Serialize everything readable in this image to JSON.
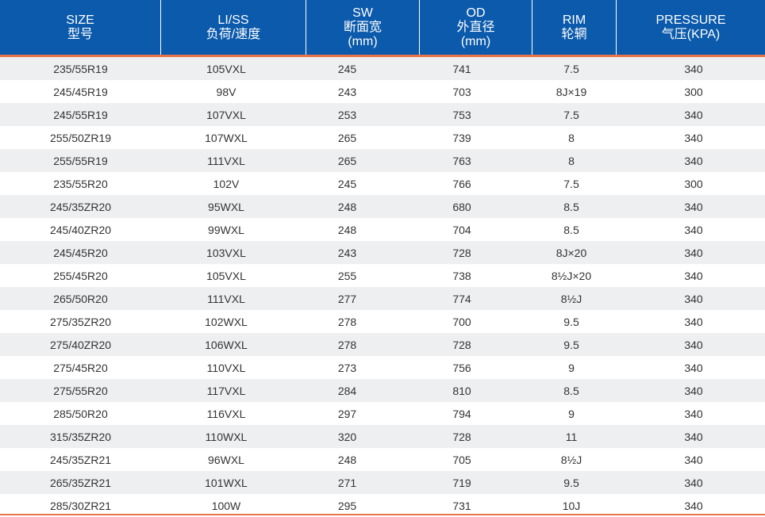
{
  "headers": [
    {
      "en": "SIZE",
      "zh": "型号"
    },
    {
      "en": "LI/SS",
      "zh": "负荷/速度"
    },
    {
      "en": "SW",
      "zh": "断面宽",
      "unit": "(mm)"
    },
    {
      "en": "OD",
      "zh": "外直径",
      "unit": "(mm)"
    },
    {
      "en": "RIM",
      "zh": "轮辋"
    },
    {
      "en": "PRESSURE",
      "zh": "气压(KPA)"
    }
  ],
  "rows": [
    [
      "235/55R19",
      "105VXL",
      "245",
      "741",
      "7.5",
      "340"
    ],
    [
      "245/45R19",
      "98V",
      "243",
      "703",
      "8J×19",
      "300"
    ],
    [
      "245/55R19",
      "107VXL",
      "253",
      "753",
      "7.5",
      "340"
    ],
    [
      "255/50ZR19",
      "107WXL",
      "265",
      "739",
      "8",
      "340"
    ],
    [
      "255/55R19",
      "111VXL",
      "265",
      "763",
      "8",
      "340"
    ],
    [
      "235/55R20",
      "102V",
      "245",
      "766",
      "7.5",
      "300"
    ],
    [
      "245/35ZR20",
      "95WXL",
      "248",
      "680",
      "8.5",
      "340"
    ],
    [
      "245/40ZR20",
      "99WXL",
      "248",
      "704",
      "8.5",
      "340"
    ],
    [
      "245/45R20",
      "103VXL",
      "243",
      "728",
      "8J×20",
      "340"
    ],
    [
      "255/45R20",
      "105VXL",
      "255",
      "738",
      "8½J×20",
      "340"
    ],
    [
      "265/50R20",
      "111VXL",
      "277",
      "774",
      "8½J",
      "340"
    ],
    [
      "275/35ZR20",
      "102WXL",
      "278",
      "700",
      "9.5",
      "340"
    ],
    [
      "275/40ZR20",
      "106WXL",
      "278",
      "728",
      "9.5",
      "340"
    ],
    [
      "275/45R20",
      "110VXL",
      "273",
      "756",
      "9",
      "340"
    ],
    [
      "275/55R20",
      "117VXL",
      "284",
      "810",
      "8.5",
      "340"
    ],
    [
      "285/50R20",
      "116VXL",
      "297",
      "794",
      "9",
      "340"
    ],
    [
      "315/35ZR20",
      "110WXL",
      "320",
      "728",
      "11",
      "340"
    ],
    [
      "245/35ZR21",
      "96WXL",
      "248",
      "705",
      "8½J",
      "340"
    ],
    [
      "265/35ZR21",
      "101WXL",
      "271",
      "719",
      "9.5",
      "340"
    ],
    [
      "285/30ZR21",
      "100W",
      "295",
      "731",
      "10J",
      "340"
    ]
  ],
  "colors": {
    "header_bg": "#0b5aab",
    "accent": "#e9744a",
    "stripe": "#eeeff1",
    "text": "#333333"
  }
}
